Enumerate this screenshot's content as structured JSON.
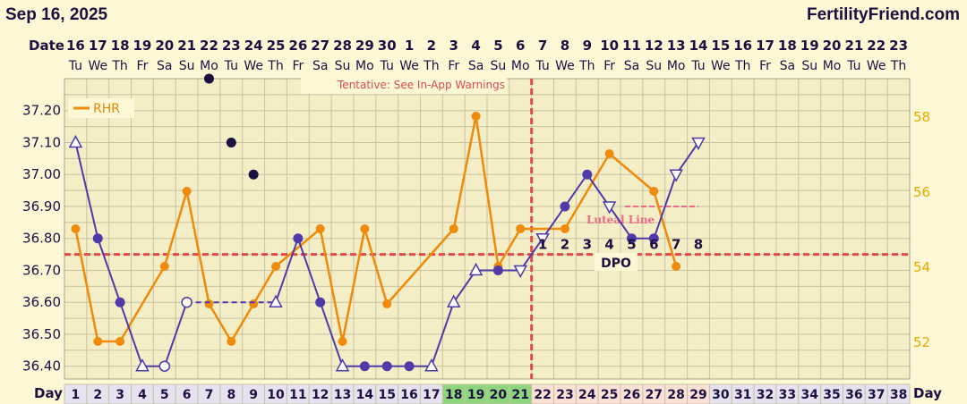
{
  "header": {
    "chart_date": "Sep 16, 2025",
    "site": "FertilityFriend.com"
  },
  "labels": {
    "date": "Date",
    "day": "Day",
    "dpo": "DPO",
    "tentative": "Tentative: See In-App Warnings",
    "luteal": "Luteal Line"
  },
  "dpo_numbers": [
    "1",
    "2",
    "3",
    "4",
    "5",
    "6",
    "7",
    "8"
  ],
  "colors": {
    "temp": "#4f3aa8",
    "rhr": "#f08a0a",
    "coverline": "#e04a4a",
    "fertile_days": "#8ed67e",
    "luteal_days": "#fbe0d6"
  },
  "chart_data": {
    "type": "line",
    "x_cycle_days": [
      1,
      2,
      3,
      4,
      5,
      6,
      7,
      8,
      9,
      10,
      11,
      12,
      13,
      14,
      15,
      16,
      17,
      18,
      19,
      20,
      21,
      22,
      23,
      24,
      25,
      26,
      27,
      28,
      29,
      30,
      31,
      32,
      33,
      34,
      35,
      36,
      37,
      38
    ],
    "dates": [
      "16",
      "17",
      "18",
      "19",
      "20",
      "21",
      "22",
      "23",
      "24",
      "25",
      "26",
      "27",
      "28",
      "29",
      "30",
      "1",
      "2",
      "3",
      "4",
      "5",
      "6",
      "7",
      "8",
      "9",
      "10",
      "11",
      "12",
      "13",
      "14",
      "15",
      "16",
      "17",
      "18",
      "19",
      "20",
      "21",
      "22",
      "23"
    ],
    "weekdays": [
      "Tu",
      "We",
      "Th",
      "Fr",
      "Sa",
      "Su",
      "Mo",
      "Tu",
      "We",
      "Th",
      "Fr",
      "Sa",
      "Su",
      "Mo",
      "Tu",
      "We",
      "Th",
      "Fr",
      "Sa",
      "Su",
      "Mo",
      "Tu",
      "We",
      "Th",
      "Fr",
      "Sa",
      "Su",
      "Mo",
      "Tu",
      "We",
      "Th",
      "Fr",
      "Sa",
      "Su",
      "Mo",
      "Tu",
      "We",
      "Th"
    ],
    "temp_axis": {
      "label_values": [
        "37.20",
        "37.10",
        "37.00",
        "36.90",
        "36.80",
        "36.70",
        "36.60",
        "36.50",
        "36.40"
      ],
      "range": [
        36.36,
        37.3
      ]
    },
    "rhr_axis": {
      "ticks": [
        58,
        56,
        54,
        52
      ],
      "range": [
        51,
        59
      ]
    },
    "temperature": [
      {
        "day": 1,
        "v": 37.1,
        "m": "tri"
      },
      {
        "day": 2,
        "v": 36.8,
        "m": "dot"
      },
      {
        "day": 3,
        "v": 36.6,
        "m": "dot"
      },
      {
        "day": 4,
        "v": 36.4,
        "m": "tri"
      },
      {
        "day": 5,
        "v": 36.4,
        "m": "open"
      },
      {
        "day": 6,
        "v": 36.6,
        "m": "open"
      },
      {
        "day": 10,
        "v": 36.6,
        "m": "tri"
      },
      {
        "day": 11,
        "v": 36.8,
        "m": "dot"
      },
      {
        "day": 12,
        "v": 36.6,
        "m": "dot"
      },
      {
        "day": 13,
        "v": 36.4,
        "m": "tri"
      },
      {
        "day": 14,
        "v": 36.4,
        "m": "dot"
      },
      {
        "day": 15,
        "v": 36.4,
        "m": "dot"
      },
      {
        "day": 16,
        "v": 36.4,
        "m": "dot"
      },
      {
        "day": 17,
        "v": 36.4,
        "m": "tri"
      },
      {
        "day": 18,
        "v": 36.6,
        "m": "tri"
      },
      {
        "day": 19,
        "v": 36.7,
        "m": "tri"
      },
      {
        "day": 20,
        "v": 36.7,
        "m": "dot"
      },
      {
        "day": 21,
        "v": 36.7,
        "m": "tri-down"
      },
      {
        "day": 22,
        "v": 36.8,
        "m": "tri-down"
      },
      {
        "day": 23,
        "v": 36.9,
        "m": "dot"
      },
      {
        "day": 24,
        "v": 37.0,
        "m": "dot"
      },
      {
        "day": 25,
        "v": 36.9,
        "m": "tri-down"
      },
      {
        "day": 26,
        "v": 36.8,
        "m": "dot"
      },
      {
        "day": 27,
        "v": 36.8,
        "m": "dot"
      },
      {
        "day": 28,
        "v": 37.0,
        "m": "tri-down"
      },
      {
        "day": 29,
        "v": 37.1,
        "m": "tri-down"
      }
    ],
    "gap_segment": {
      "from_day": 6,
      "to_day": 10,
      "style": "dashed"
    },
    "outliers": [
      {
        "day": 7,
        "v": 37.3
      },
      {
        "day": 8,
        "v": 37.1
      },
      {
        "day": 9,
        "v": 37.0
      }
    ],
    "rhr": [
      {
        "day": 1,
        "v": 55
      },
      {
        "day": 2,
        "v": 52
      },
      {
        "day": 3,
        "v": 52
      },
      {
        "day": 5,
        "v": 54
      },
      {
        "day": 6,
        "v": 56
      },
      {
        "day": 7,
        "v": 53
      },
      {
        "day": 8,
        "v": 52
      },
      {
        "day": 9,
        "v": 53
      },
      {
        "day": 10,
        "v": 54
      },
      {
        "day": 12,
        "v": 55
      },
      {
        "day": 13,
        "v": 52
      },
      {
        "day": 14,
        "v": 55
      },
      {
        "day": 15,
        "v": 53
      },
      {
        "day": 18,
        "v": 55
      },
      {
        "day": 19,
        "v": 58
      },
      {
        "day": 20,
        "v": 54
      },
      {
        "day": 21,
        "v": 55
      },
      {
        "day": 23,
        "v": 55
      },
      {
        "day": 25,
        "v": 57
      },
      {
        "day": 27,
        "v": 56
      },
      {
        "day": 28,
        "v": 54
      }
    ],
    "coverline": 36.75,
    "ovulation_day": 21,
    "luteal_line": {
      "from_day": 26,
      "to_day": 29,
      "v": 36.9
    },
    "fertile_days": [
      18,
      19,
      20,
      21
    ],
    "luteal_days": [
      22,
      23,
      24,
      25,
      26,
      27,
      28,
      29
    ],
    "dpo_days": [
      22,
      23,
      24,
      25,
      26,
      27,
      28,
      29
    ],
    "grid": true,
    "legend": {
      "series": "RHR",
      "placement": "top-left"
    }
  }
}
